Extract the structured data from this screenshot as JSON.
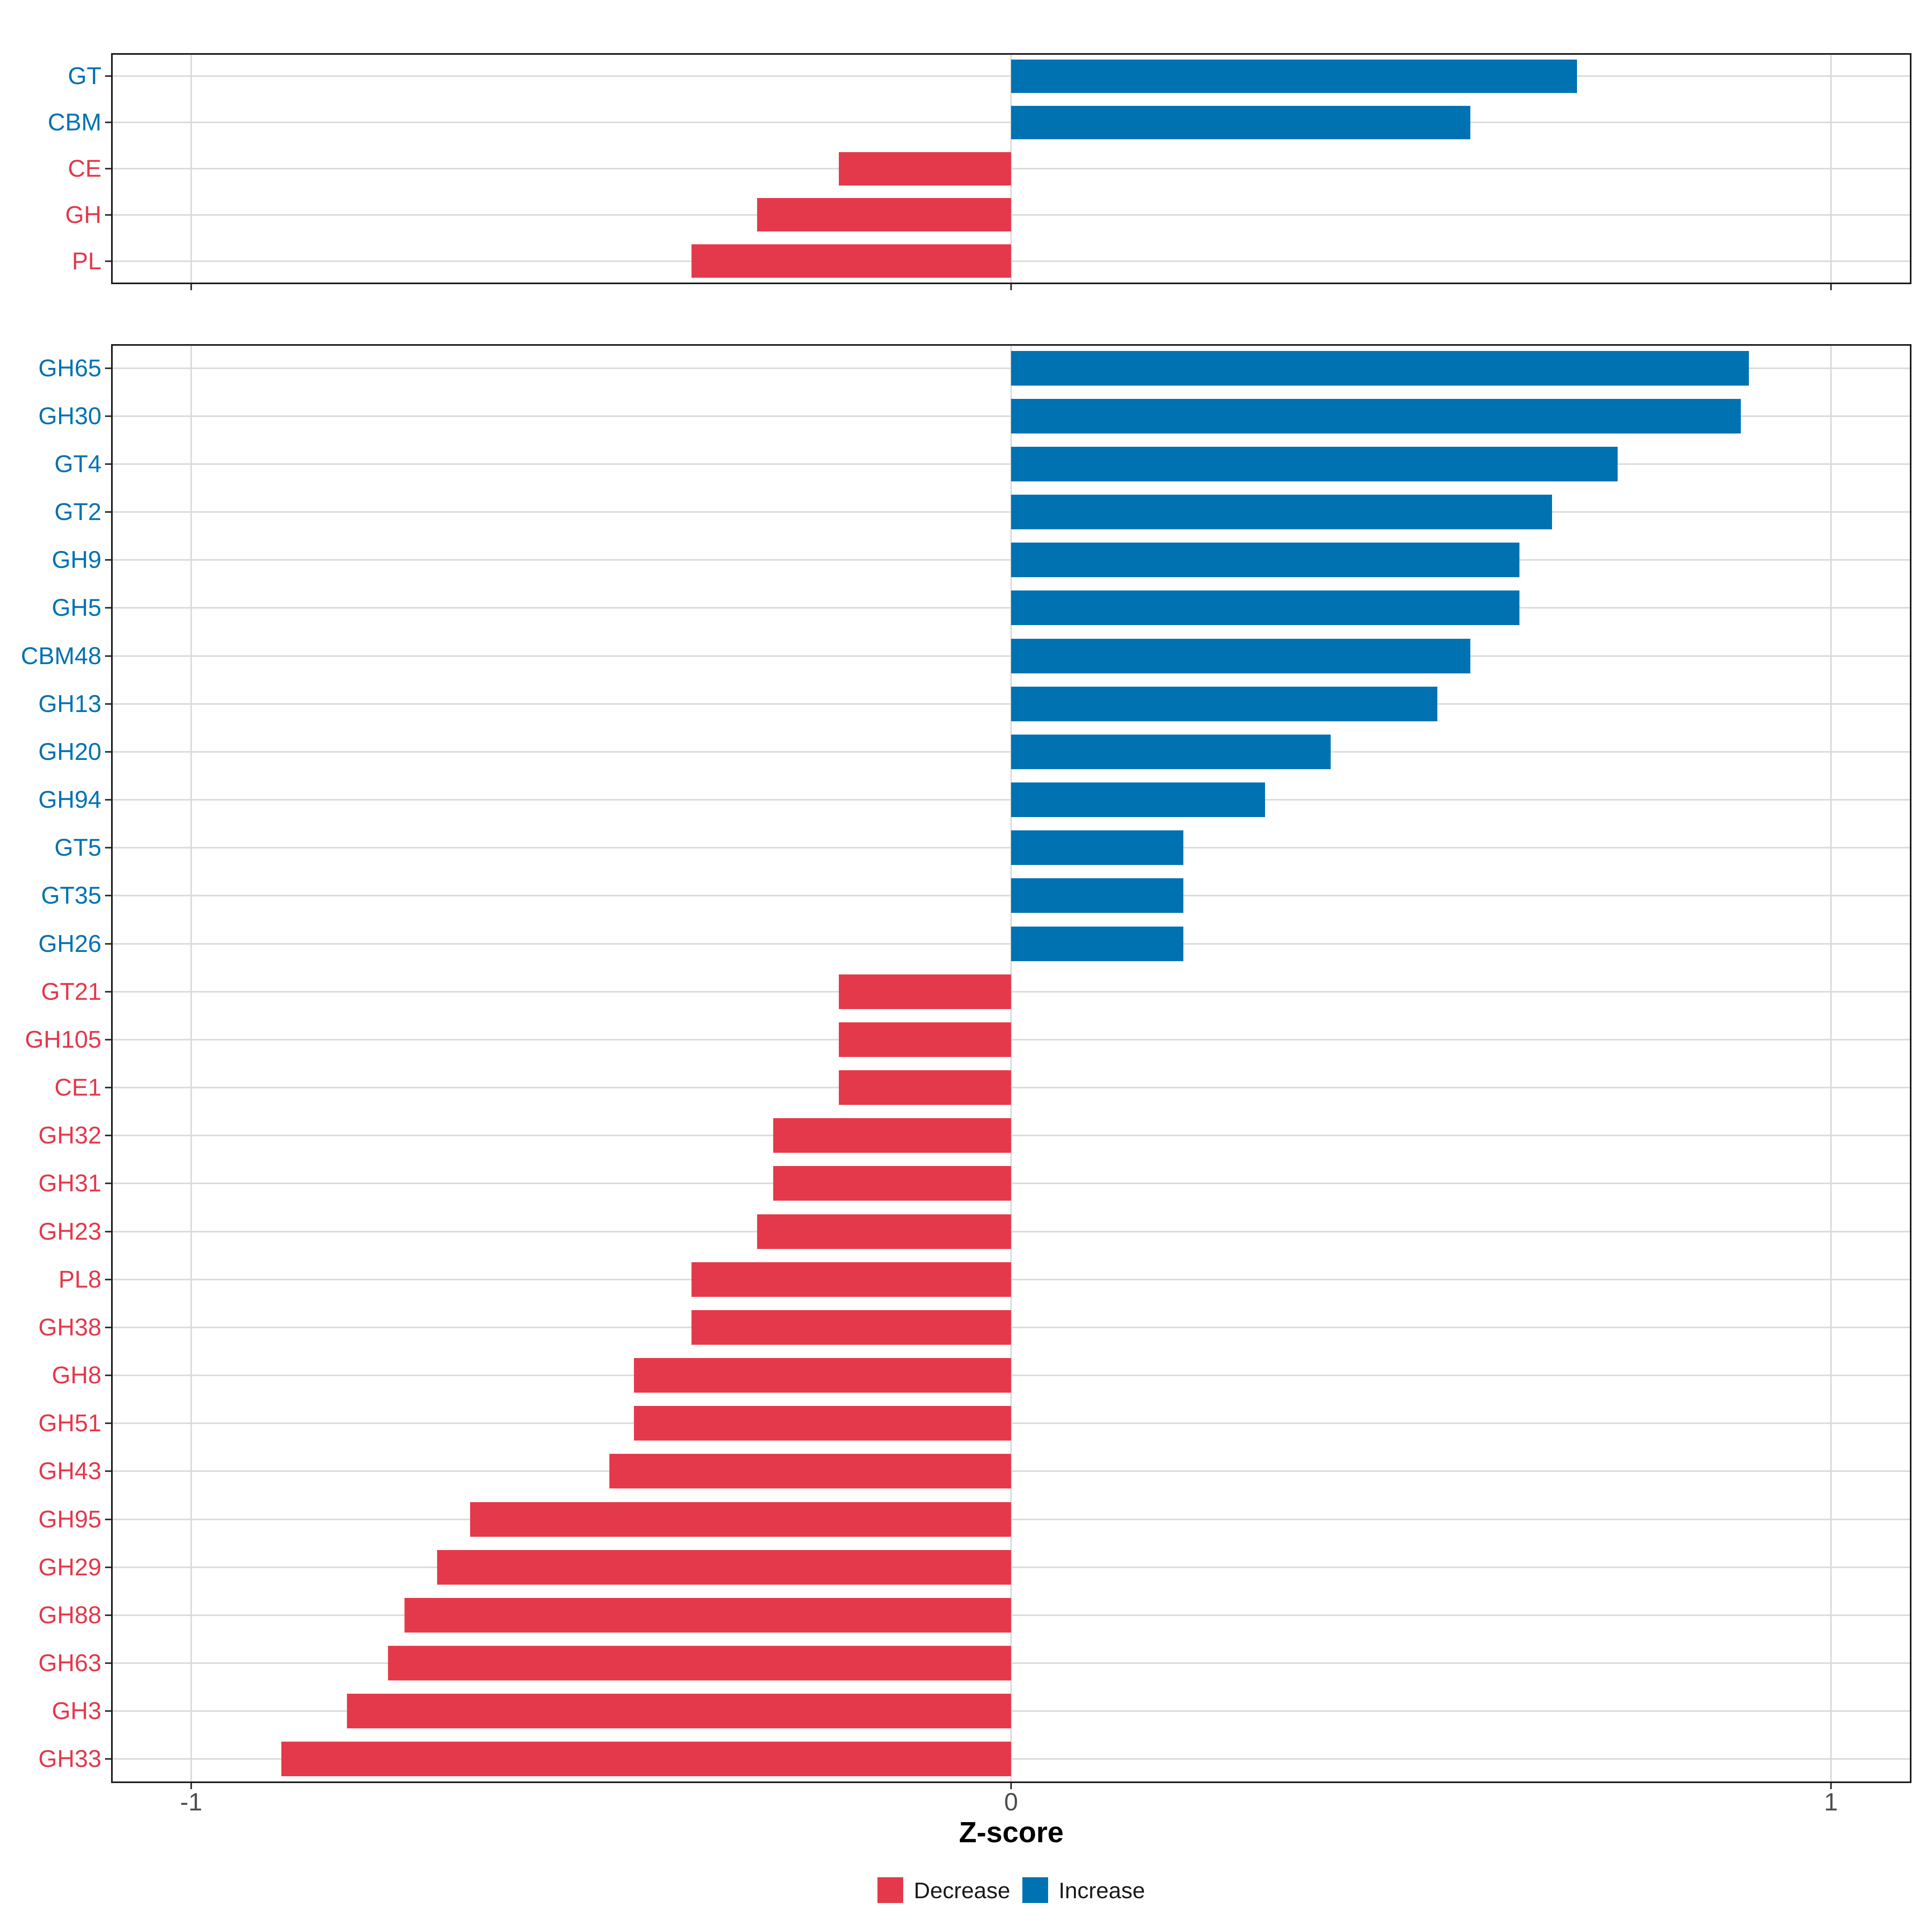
{
  "axis": {
    "title": "Z-score",
    "tick_labels": [
      "-1",
      "0",
      "1"
    ],
    "tick_values": [
      -1,
      0,
      1
    ],
    "range": [
      -1.1,
      1.1
    ]
  },
  "colors": {
    "increase": "#0072B2",
    "decrease": "#E4394B",
    "grid": "#DCDCDC",
    "panel_border": "#1A1A1A",
    "tick": "#333333",
    "tick_label": "#4D4D4D",
    "background": "#FFFFFF"
  },
  "legend": {
    "items": [
      {
        "label": "Decrease",
        "color": "#E4394B",
        "direction": "decrease"
      },
      {
        "label": "Increase",
        "color": "#0072B2",
        "direction": "increase"
      }
    ]
  },
  "chart_data": [
    {
      "type": "bar",
      "orientation": "horizontal",
      "panel": "top",
      "title": "",
      "xlabel": "Z-score",
      "xlim": [
        -1.1,
        1.1
      ],
      "x_ticks": [
        -1,
        0,
        1
      ],
      "grid": true,
      "legend_position": "bottom",
      "categories": [
        "GT",
        "CBM",
        "CE",
        "GH",
        "PL"
      ],
      "values": [
        0.69,
        0.56,
        -0.21,
        -0.31,
        -0.39
      ],
      "directions": [
        "increase",
        "increase",
        "decrease",
        "decrease",
        "decrease"
      ]
    },
    {
      "type": "bar",
      "orientation": "horizontal",
      "panel": "bottom",
      "title": "",
      "xlabel": "Z-score",
      "xlim": [
        -1.1,
        1.1
      ],
      "x_ticks": [
        -1,
        0,
        1
      ],
      "grid": true,
      "legend_position": "bottom",
      "categories": [
        "GH65",
        "GH30",
        "GT4",
        "GT2",
        "GH9",
        "GH5",
        "CBM48",
        "GH13",
        "GH20",
        "GH94",
        "GT5",
        "GT35",
        "GH26",
        "GT21",
        "GH105",
        "CE1",
        "GH32",
        "GH31",
        "GH23",
        "PL8",
        "GH38",
        "GH8",
        "GH51",
        "GH43",
        "GH95",
        "GH29",
        "GH88",
        "GH63",
        "GH3",
        "GH33"
      ],
      "values": [
        0.9,
        0.89,
        0.74,
        0.66,
        0.62,
        0.62,
        0.56,
        0.52,
        0.39,
        0.31,
        0.21,
        0.21,
        0.21,
        -0.21,
        -0.21,
        -0.21,
        -0.29,
        -0.29,
        -0.31,
        -0.39,
        -0.39,
        -0.46,
        -0.46,
        -0.49,
        -0.66,
        -0.7,
        -0.74,
        -0.76,
        -0.81,
        -0.89
      ],
      "directions": [
        "increase",
        "increase",
        "increase",
        "increase",
        "increase",
        "increase",
        "increase",
        "increase",
        "increase",
        "increase",
        "increase",
        "increase",
        "increase",
        "decrease",
        "decrease",
        "decrease",
        "decrease",
        "decrease",
        "decrease",
        "decrease",
        "decrease",
        "decrease",
        "decrease",
        "decrease",
        "decrease",
        "decrease",
        "decrease",
        "decrease",
        "decrease",
        "decrease"
      ]
    }
  ]
}
